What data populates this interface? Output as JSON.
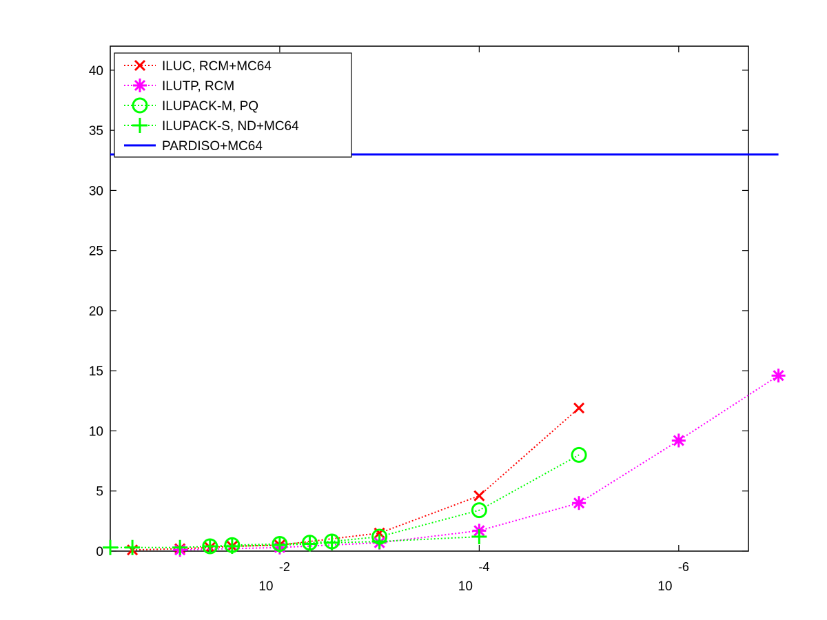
{
  "chart_data": {
    "type": "line",
    "xscale": "log",
    "xaxis_reversed": true,
    "xlim": [
      0.5,
      2e-07
    ],
    "ylim": [
      0,
      42
    ],
    "yticks": [
      0,
      5,
      10,
      15,
      20,
      25,
      30,
      35,
      40
    ],
    "ytick_labels": [
      "0",
      "5",
      "10",
      "15",
      "20",
      "25",
      "30",
      "35",
      "40"
    ],
    "xticks": [
      {
        "value": 0.01,
        "base": "10",
        "exp": "-2"
      },
      {
        "value": 0.0001,
        "base": "10",
        "exp": "-4"
      },
      {
        "value": 1e-06,
        "base": "10",
        "exp": "-6"
      }
    ],
    "legend_position": "top-left",
    "series": [
      {
        "name": "ILUC, RCM+MC64",
        "color": "#ff0000",
        "marker": "x-mark",
        "line": "dotted",
        "points": [
          {
            "x": 0.3,
            "y": 0.1
          },
          {
            "x": 0.1,
            "y": 0.2
          },
          {
            "x": 0.05,
            "y": 0.3
          },
          {
            "x": 0.03,
            "y": 0.4
          },
          {
            "x": 0.01,
            "y": 0.5
          },
          {
            "x": 0.001,
            "y": 1.5
          },
          {
            "x": 0.0001,
            "y": 4.6
          },
          {
            "x": 1e-05,
            "y": 11.9
          }
        ]
      },
      {
        "name": "ILUTP, RCM",
        "color": "#ff00ff",
        "marker": "asterisk",
        "line": "dotted",
        "points": [
          {
            "x": 0.1,
            "y": 0.1
          },
          {
            "x": 0.01,
            "y": 0.3
          },
          {
            "x": 0.001,
            "y": 0.7
          },
          {
            "x": 0.0001,
            "y": 1.7
          },
          {
            "x": 1e-05,
            "y": 4.0
          },
          {
            "x": 1e-06,
            "y": 9.2
          },
          {
            "x": 1e-07,
            "y": 14.6
          }
        ]
      },
      {
        "name": "ILUPACK-M, PQ",
        "color": "#00ff00",
        "marker": "circle",
        "line": "dotted",
        "points": [
          {
            "x": 0.05,
            "y": 0.4
          },
          {
            "x": 0.03,
            "y": 0.5
          },
          {
            "x": 0.01,
            "y": 0.6
          },
          {
            "x": 0.005,
            "y": 0.7
          },
          {
            "x": 0.003,
            "y": 0.8
          },
          {
            "x": 0.001,
            "y": 1.2
          },
          {
            "x": 0.0001,
            "y": 3.4
          },
          {
            "x": 1e-05,
            "y": 8.0
          }
        ]
      },
      {
        "name": "ILUPACK-S, ND+MC64",
        "color": "#00ff00",
        "marker": "plus",
        "line": "dotted",
        "points": [
          {
            "x": 0.5,
            "y": 0.3
          },
          {
            "x": 0.3,
            "y": 0.3
          },
          {
            "x": 0.1,
            "y": 0.3
          },
          {
            "x": 0.05,
            "y": 0.4
          },
          {
            "x": 0.03,
            "y": 0.4
          },
          {
            "x": 0.01,
            "y": 0.5
          },
          {
            "x": 0.005,
            "y": 0.6
          },
          {
            "x": 0.003,
            "y": 0.7
          },
          {
            "x": 0.001,
            "y": 0.8
          },
          {
            "x": 0.0001,
            "y": 1.2
          }
        ]
      },
      {
        "name": "PARDISO+MC64",
        "color": "#0000ff",
        "marker": "none",
        "line": "solid",
        "points": [
          {
            "x": 0.5,
            "y": 33
          },
          {
            "x": 1e-07,
            "y": 33
          }
        ]
      }
    ]
  }
}
